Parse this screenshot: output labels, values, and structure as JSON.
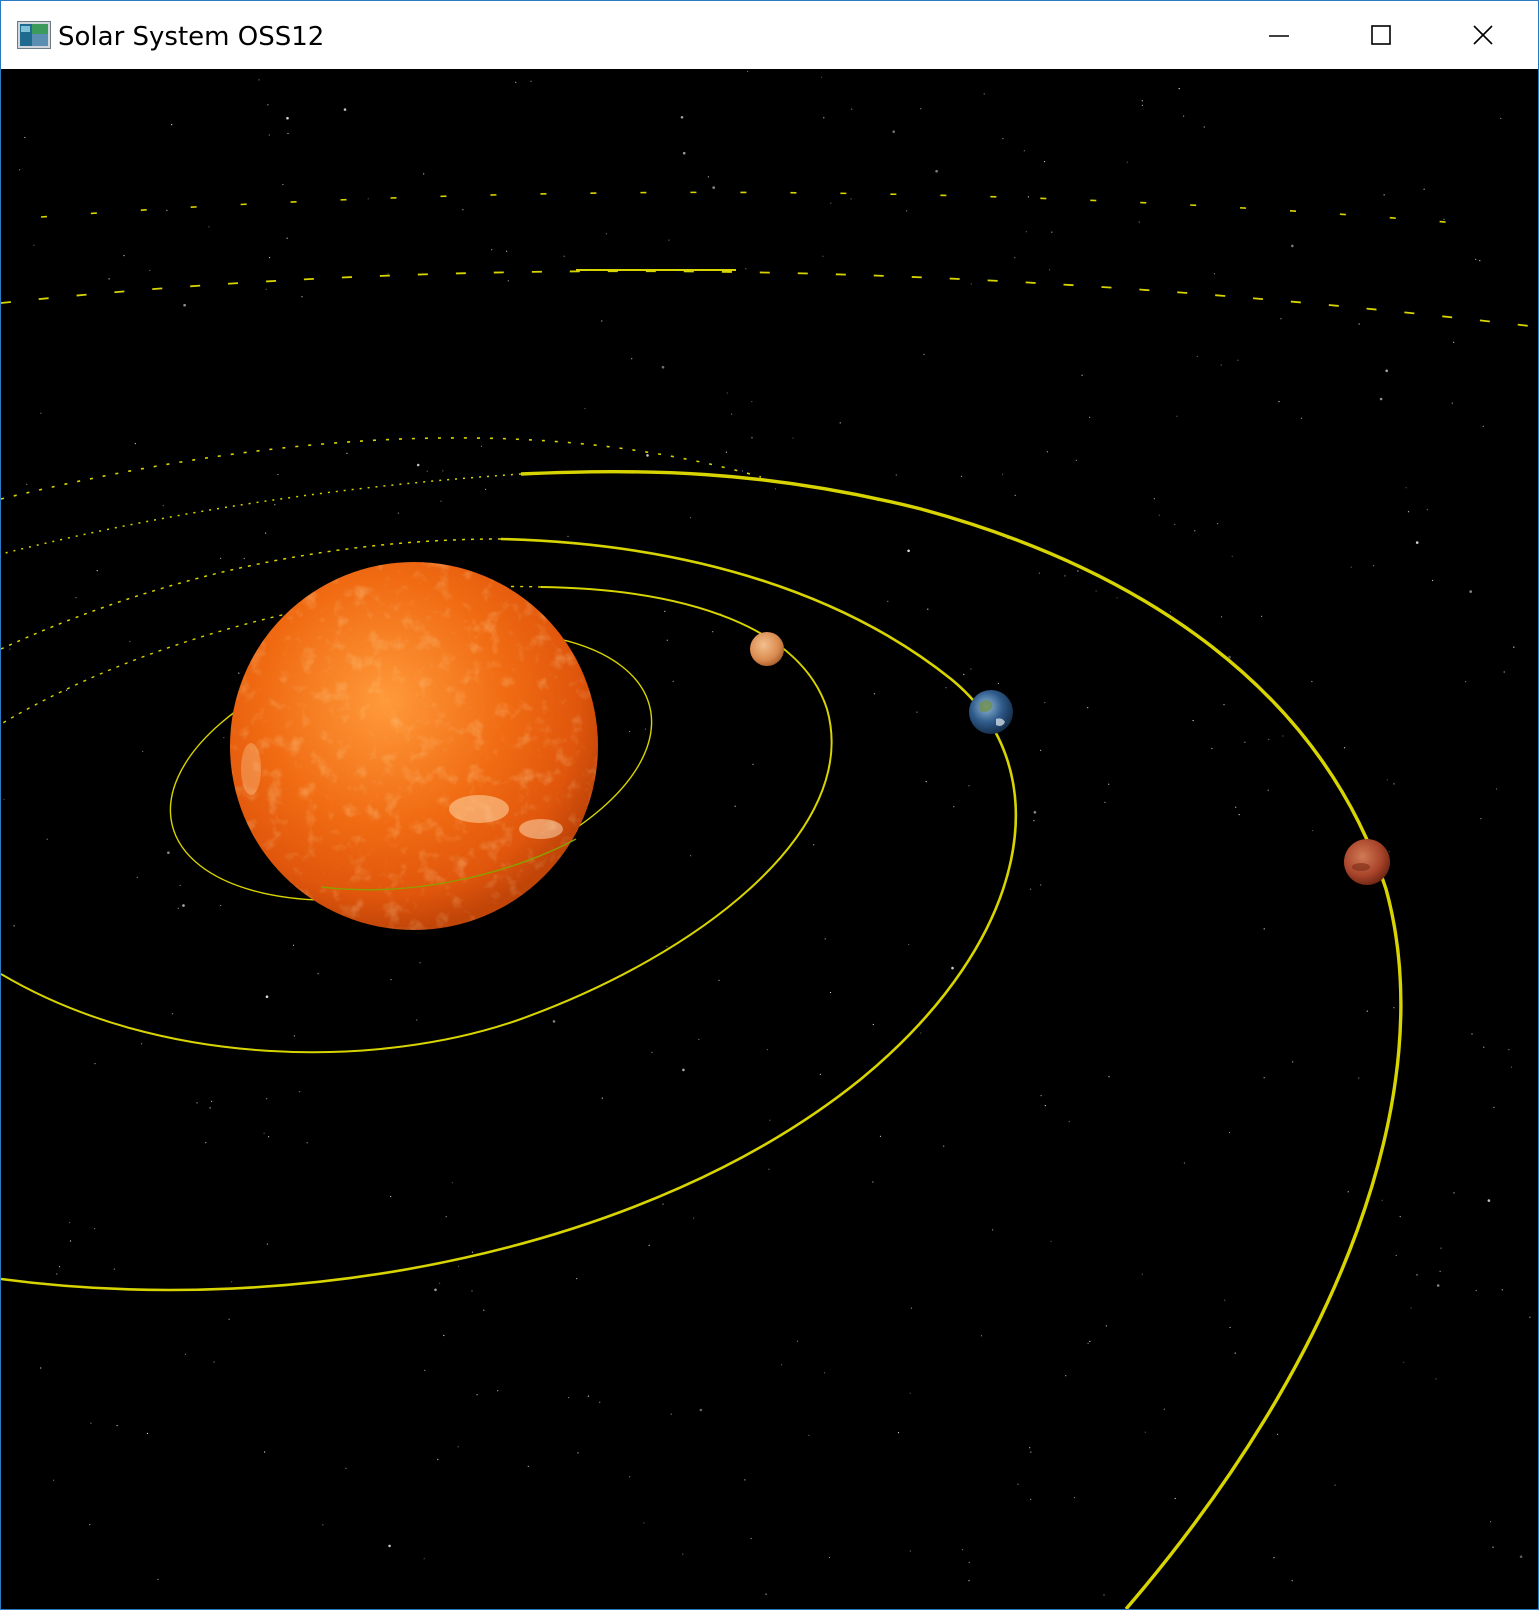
{
  "window": {
    "title": "Solar System OSS12",
    "icon": "app-icon",
    "controls": {
      "minimize": "minimize-icon",
      "maximize": "maximize-icon",
      "close": "close-icon"
    }
  },
  "scene": {
    "background_color": "#000000",
    "orbit_color": "#d8d400",
    "bodies": [
      {
        "id": "sun",
        "name": "Sun",
        "color": "#f06a12"
      },
      {
        "id": "mercury",
        "name": "Mercury",
        "color": "#d98a4e"
      },
      {
        "id": "earth",
        "name": "Earth",
        "color": "#2e5a8a"
      },
      {
        "id": "mars",
        "name": "Mars",
        "color": "#a8442a"
      }
    ]
  }
}
